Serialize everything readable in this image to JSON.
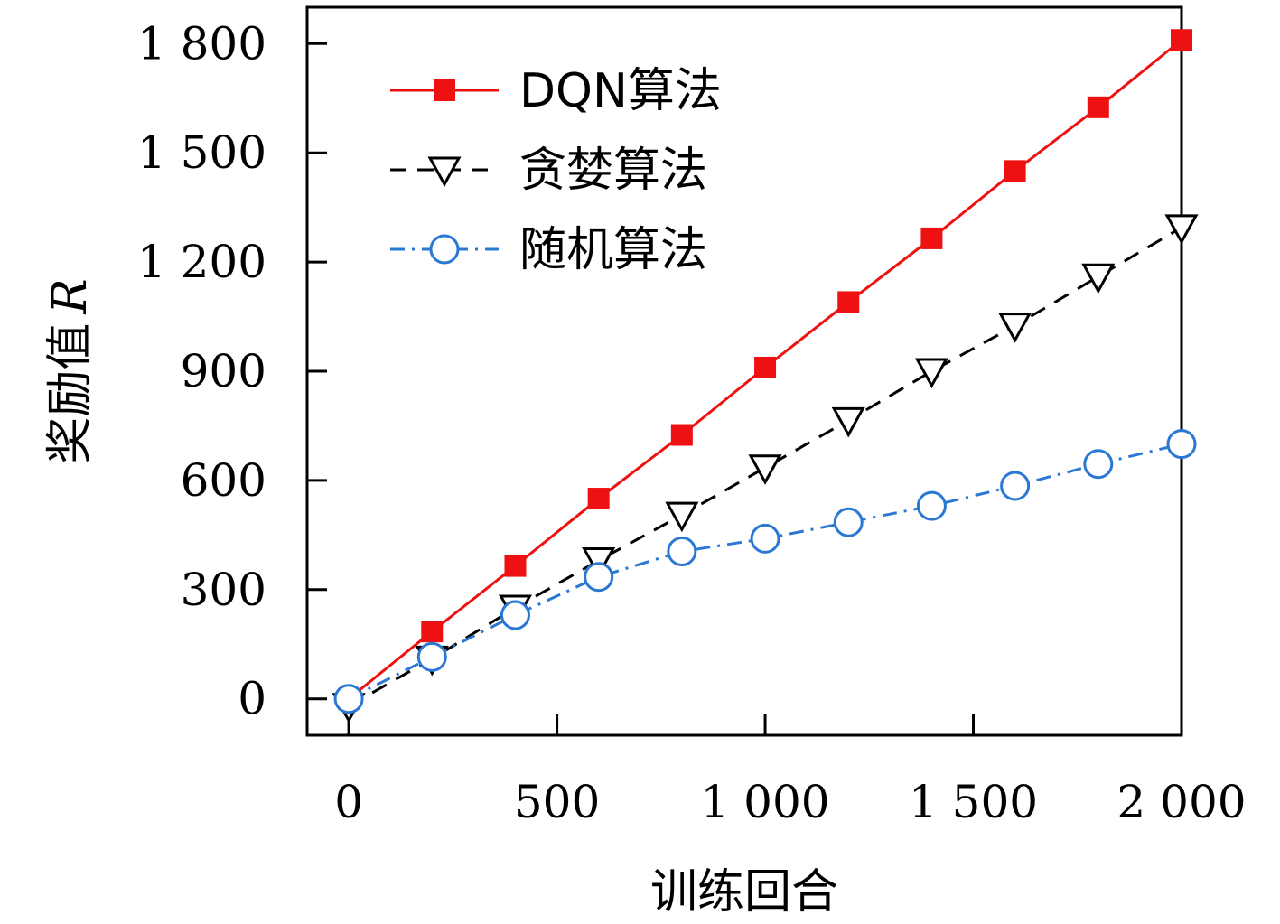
{
  "chart_data": {
    "type": "line",
    "title": "",
    "xlabel": "训练回合",
    "ylabel": "奖励值",
    "ylabel_symbol": "R",
    "xlim": [
      -100,
      2000
    ],
    "ylim": [
      -100,
      1900
    ],
    "x_ticks": [
      0,
      500,
      1000,
      1500,
      2000
    ],
    "x_tick_labels": [
      "0",
      "500",
      "1 000",
      "1 500",
      "2 000"
    ],
    "y_ticks": [
      0,
      300,
      600,
      900,
      1200,
      1500,
      1800
    ],
    "y_tick_labels": [
      "0",
      "300",
      "600",
      "900",
      "1 200",
      "1 500",
      "1 800"
    ],
    "grid": false,
    "legend_position": "top-left",
    "x": [
      0,
      200,
      400,
      600,
      800,
      1000,
      1200,
      1400,
      1600,
      1800,
      2000
    ],
    "series": [
      {
        "name": "DQN算法",
        "values": [
          0,
          185,
          365,
          550,
          725,
          910,
          1090,
          1265,
          1450,
          1625,
          1810
        ],
        "color": "#ee1111",
        "line_style": "solid",
        "marker": "square-filled"
      },
      {
        "name": "贪婪算法",
        "values": [
          -20,
          110,
          250,
          380,
          505,
          635,
          765,
          900,
          1025,
          1160,
          1295
        ],
        "color": "#000000",
        "line_style": "dashed",
        "marker": "triangle-down-open"
      },
      {
        "name": "随机算法",
        "values": [
          0,
          115,
          230,
          335,
          405,
          440,
          485,
          530,
          585,
          645,
          700
        ],
        "color": "#2a78d4",
        "line_style": "dash-dot",
        "marker": "circle-open"
      }
    ]
  }
}
